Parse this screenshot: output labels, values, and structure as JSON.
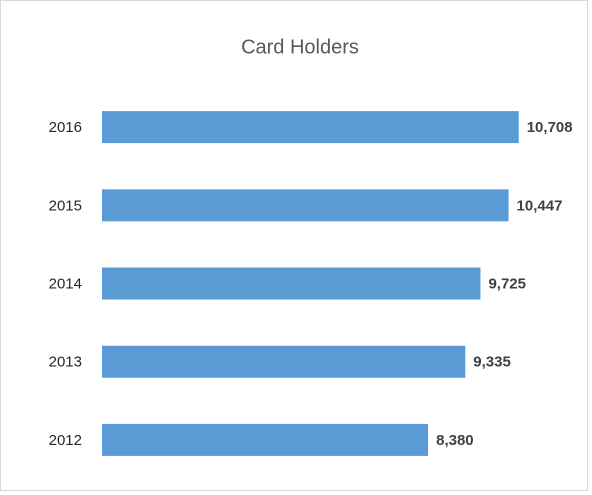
{
  "chart_data": {
    "type": "bar",
    "orientation": "horizontal",
    "title": "Card Holders",
    "categories": [
      "2016",
      "2015",
      "2014",
      "2013",
      "2012"
    ],
    "values": [
      10708,
      10447,
      9725,
      9335,
      8380
    ],
    "value_labels": [
      "10,708",
      "10,447",
      "9,725",
      "9,335",
      "8,380"
    ],
    "color": "#5b9bd5",
    "xlim": [
      0,
      12000
    ]
  }
}
